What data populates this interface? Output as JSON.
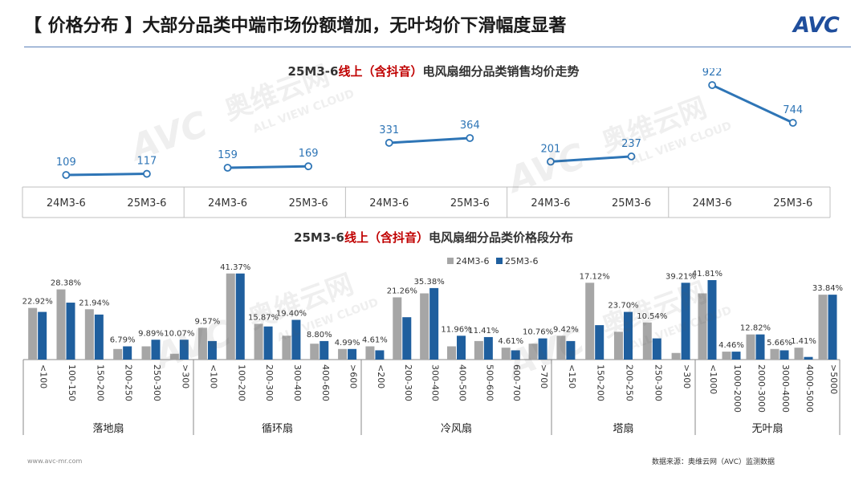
{
  "title": "【 价格分布 】大部分品类中端市场份额增加，无叶均价下滑幅度显著",
  "logo": "AVC",
  "watermark": {
    "brand": "奥维云网",
    "sub": "ALL VIEW CLOUD"
  },
  "chart1_title": {
    "prefix": "25M3-6",
    "red": "线上（含抖音）",
    "suffix": "电风扇细分品类销售均价走势"
  },
  "chart2_title": {
    "prefix": "25M3-6",
    "red": "线上（含抖音）",
    "suffix": "电风扇细分品类价格段分布"
  },
  "footer": {
    "left": "www.avc-mr.com",
    "right": "数据来源：奥维云网（AVC）监测数据"
  },
  "colors": {
    "line": "#2e75b6",
    "gray": "#a6a6a6",
    "blue": "#1f5f9e"
  },
  "chart_data": [
    {
      "type": "line",
      "categories": [
        "24M3-6",
        "25M3-6"
      ],
      "groups": [
        {
          "name": "落地扇",
          "values": [
            109,
            117
          ]
        },
        {
          "name": "循环扇",
          "values": [
            159,
            169
          ]
        },
        {
          "name": "冷风扇",
          "values": [
            331,
            364
          ]
        },
        {
          "name": "塔扇",
          "values": [
            201,
            237
          ]
        },
        {
          "name": "无叶扇",
          "values": [
            922,
            744
          ]
        }
      ]
    },
    {
      "type": "bar",
      "series": [
        {
          "name": "24M3-6"
        },
        {
          "name": "25M3-6"
        }
      ],
      "groups": [
        {
          "name": "落地扇",
          "categories": [
            "<100",
            "100-150",
            "150-200",
            "200-250",
            "250-300",
            ">300"
          ],
          "s24": [
            19.5,
            26.5,
            19.0,
            4.0,
            5.0,
            2.2
          ],
          "s25": [
            18.0,
            21.5,
            17.0,
            5.0,
            7.5,
            7.5
          ],
          "labels": [
            "22.92%",
            "28.38%",
            "21.94%",
            "6.79%",
            "9.89%",
            "10.07%"
          ]
        },
        {
          "name": "循环扇",
          "categories": [
            "<100",
            "100-200",
            "200-300",
            "300-400",
            "400-600",
            ">600"
          ],
          "s24": [
            12.0,
            32.5,
            13.5,
            9.0,
            6.0,
            4.0
          ],
          "s25": [
            7.0,
            32.5,
            12.5,
            15.0,
            7.0,
            4.0
          ],
          "labels": [
            "9.57%",
            "41.37%",
            "15.87%",
            "19.40%",
            "8.80%",
            "4.99%"
          ]
        },
        {
          "name": "冷风扇",
          "categories": [
            "<200",
            "200-300",
            "300-400",
            "400-500",
            "500-600",
            "600-700",
            ">700"
          ],
          "s24": [
            5.0,
            23.5,
            25.0,
            5.0,
            7.0,
            4.5,
            6.0
          ],
          "s25": [
            3.5,
            16.0,
            27.0,
            9.0,
            8.5,
            3.5,
            8.0
          ],
          "labels": [
            "4.61%",
            "21.26%",
            "35.38%",
            "11.96%",
            "11.41%",
            "4.61%",
            "10.76%"
          ]
        },
        {
          "name": "塔扇",
          "categories": [
            "<150",
            "150-200",
            "200-250",
            "250-300",
            ">300"
          ],
          "s24": [
            9.0,
            29.0,
            10.5,
            14.0,
            2.5
          ],
          "s25": [
            7.0,
            13.0,
            18.0,
            8.0,
            29.0
          ],
          "labels": [
            "9.42%",
            "17.12%",
            "23.70%",
            "10.54%",
            "39.21%"
          ]
        },
        {
          "name": "无叶扇",
          "categories": [
            "<1000",
            "1000-2000",
            "2000-3000",
            "3000-4000",
            "4000-5000",
            ">5000"
          ],
          "s24": [
            25.0,
            3.0,
            9.5,
            4.0,
            4.5,
            24.5
          ],
          "s25": [
            30.0,
            3.0,
            9.5,
            3.5,
            1.0,
            24.5
          ],
          "labels": [
            "41.81%",
            "4.46%",
            "12.82%",
            "5.66%",
            "1.41%",
            "33.84%"
          ]
        }
      ]
    }
  ]
}
